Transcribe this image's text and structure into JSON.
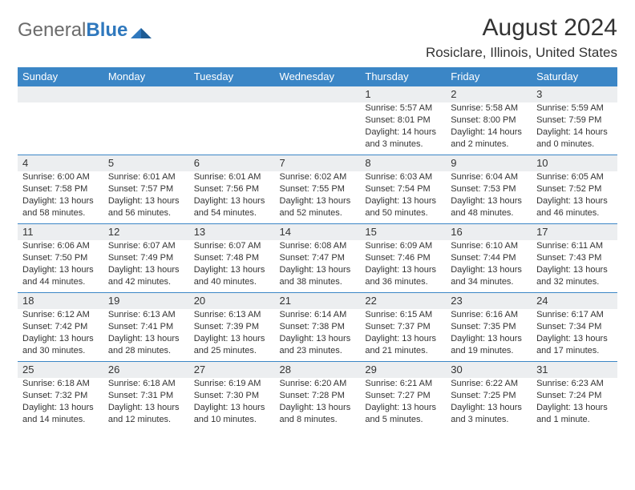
{
  "logo": {
    "general": "General",
    "blue": "Blue"
  },
  "title": "August 2024",
  "subtitle": "Rosiclare, Illinois, United States",
  "colors": {
    "header_bg": "#3b86c6",
    "header_text": "#ffffff",
    "row_border": "#3b86c6",
    "daynum_bg": "#eceef0",
    "cell_bg": "#ffffff",
    "text": "#333333",
    "logo_gray": "#6b6b6b",
    "logo_blue": "#2f78bd"
  },
  "typography": {
    "title_fontsize": 30,
    "subtitle_fontsize": 17,
    "header_fontsize": 13,
    "daynum_fontsize": 13,
    "detail_fontsize": 11
  },
  "day_headers": [
    "Sunday",
    "Monday",
    "Tuesday",
    "Wednesday",
    "Thursday",
    "Friday",
    "Saturday"
  ],
  "weeks": [
    [
      null,
      null,
      null,
      null,
      {
        "n": "1",
        "sunrise": "Sunrise: 5:57 AM",
        "sunset": "Sunset: 8:01 PM",
        "daylight": "Daylight: 14 hours and 3 minutes."
      },
      {
        "n": "2",
        "sunrise": "Sunrise: 5:58 AM",
        "sunset": "Sunset: 8:00 PM",
        "daylight": "Daylight: 14 hours and 2 minutes."
      },
      {
        "n": "3",
        "sunrise": "Sunrise: 5:59 AM",
        "sunset": "Sunset: 7:59 PM",
        "daylight": "Daylight: 14 hours and 0 minutes."
      }
    ],
    [
      {
        "n": "4",
        "sunrise": "Sunrise: 6:00 AM",
        "sunset": "Sunset: 7:58 PM",
        "daylight": "Daylight: 13 hours and 58 minutes."
      },
      {
        "n": "5",
        "sunrise": "Sunrise: 6:01 AM",
        "sunset": "Sunset: 7:57 PM",
        "daylight": "Daylight: 13 hours and 56 minutes."
      },
      {
        "n": "6",
        "sunrise": "Sunrise: 6:01 AM",
        "sunset": "Sunset: 7:56 PM",
        "daylight": "Daylight: 13 hours and 54 minutes."
      },
      {
        "n": "7",
        "sunrise": "Sunrise: 6:02 AM",
        "sunset": "Sunset: 7:55 PM",
        "daylight": "Daylight: 13 hours and 52 minutes."
      },
      {
        "n": "8",
        "sunrise": "Sunrise: 6:03 AM",
        "sunset": "Sunset: 7:54 PM",
        "daylight": "Daylight: 13 hours and 50 minutes."
      },
      {
        "n": "9",
        "sunrise": "Sunrise: 6:04 AM",
        "sunset": "Sunset: 7:53 PM",
        "daylight": "Daylight: 13 hours and 48 minutes."
      },
      {
        "n": "10",
        "sunrise": "Sunrise: 6:05 AM",
        "sunset": "Sunset: 7:52 PM",
        "daylight": "Daylight: 13 hours and 46 minutes."
      }
    ],
    [
      {
        "n": "11",
        "sunrise": "Sunrise: 6:06 AM",
        "sunset": "Sunset: 7:50 PM",
        "daylight": "Daylight: 13 hours and 44 minutes."
      },
      {
        "n": "12",
        "sunrise": "Sunrise: 6:07 AM",
        "sunset": "Sunset: 7:49 PM",
        "daylight": "Daylight: 13 hours and 42 minutes."
      },
      {
        "n": "13",
        "sunrise": "Sunrise: 6:07 AM",
        "sunset": "Sunset: 7:48 PM",
        "daylight": "Daylight: 13 hours and 40 minutes."
      },
      {
        "n": "14",
        "sunrise": "Sunrise: 6:08 AM",
        "sunset": "Sunset: 7:47 PM",
        "daylight": "Daylight: 13 hours and 38 minutes."
      },
      {
        "n": "15",
        "sunrise": "Sunrise: 6:09 AM",
        "sunset": "Sunset: 7:46 PM",
        "daylight": "Daylight: 13 hours and 36 minutes."
      },
      {
        "n": "16",
        "sunrise": "Sunrise: 6:10 AM",
        "sunset": "Sunset: 7:44 PM",
        "daylight": "Daylight: 13 hours and 34 minutes."
      },
      {
        "n": "17",
        "sunrise": "Sunrise: 6:11 AM",
        "sunset": "Sunset: 7:43 PM",
        "daylight": "Daylight: 13 hours and 32 minutes."
      }
    ],
    [
      {
        "n": "18",
        "sunrise": "Sunrise: 6:12 AM",
        "sunset": "Sunset: 7:42 PM",
        "daylight": "Daylight: 13 hours and 30 minutes."
      },
      {
        "n": "19",
        "sunrise": "Sunrise: 6:13 AM",
        "sunset": "Sunset: 7:41 PM",
        "daylight": "Daylight: 13 hours and 28 minutes."
      },
      {
        "n": "20",
        "sunrise": "Sunrise: 6:13 AM",
        "sunset": "Sunset: 7:39 PM",
        "daylight": "Daylight: 13 hours and 25 minutes."
      },
      {
        "n": "21",
        "sunrise": "Sunrise: 6:14 AM",
        "sunset": "Sunset: 7:38 PM",
        "daylight": "Daylight: 13 hours and 23 minutes."
      },
      {
        "n": "22",
        "sunrise": "Sunrise: 6:15 AM",
        "sunset": "Sunset: 7:37 PM",
        "daylight": "Daylight: 13 hours and 21 minutes."
      },
      {
        "n": "23",
        "sunrise": "Sunrise: 6:16 AM",
        "sunset": "Sunset: 7:35 PM",
        "daylight": "Daylight: 13 hours and 19 minutes."
      },
      {
        "n": "24",
        "sunrise": "Sunrise: 6:17 AM",
        "sunset": "Sunset: 7:34 PM",
        "daylight": "Daylight: 13 hours and 17 minutes."
      }
    ],
    [
      {
        "n": "25",
        "sunrise": "Sunrise: 6:18 AM",
        "sunset": "Sunset: 7:32 PM",
        "daylight": "Daylight: 13 hours and 14 minutes."
      },
      {
        "n": "26",
        "sunrise": "Sunrise: 6:18 AM",
        "sunset": "Sunset: 7:31 PM",
        "daylight": "Daylight: 13 hours and 12 minutes."
      },
      {
        "n": "27",
        "sunrise": "Sunrise: 6:19 AM",
        "sunset": "Sunset: 7:30 PM",
        "daylight": "Daylight: 13 hours and 10 minutes."
      },
      {
        "n": "28",
        "sunrise": "Sunrise: 6:20 AM",
        "sunset": "Sunset: 7:28 PM",
        "daylight": "Daylight: 13 hours and 8 minutes."
      },
      {
        "n": "29",
        "sunrise": "Sunrise: 6:21 AM",
        "sunset": "Sunset: 7:27 PM",
        "daylight": "Daylight: 13 hours and 5 minutes."
      },
      {
        "n": "30",
        "sunrise": "Sunrise: 6:22 AM",
        "sunset": "Sunset: 7:25 PM",
        "daylight": "Daylight: 13 hours and 3 minutes."
      },
      {
        "n": "31",
        "sunrise": "Sunrise: 6:23 AM",
        "sunset": "Sunset: 7:24 PM",
        "daylight": "Daylight: 13 hours and 1 minute."
      }
    ]
  ]
}
